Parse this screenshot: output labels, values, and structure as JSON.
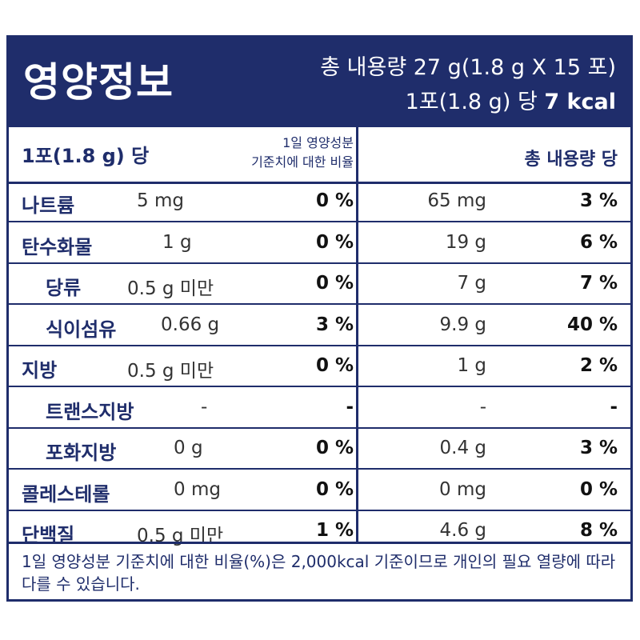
{
  "header": {
    "title": "영양정보",
    "total": "총 내용량 27 g(1.8 g X 15 포)",
    "per_serving_prefix": "1포(1.8 g) 당 ",
    "kcal": "7 kcal"
  },
  "subheader": {
    "per_serving": "1포(1.8 g) 당",
    "reference_line1": "1일 영양성분",
    "reference_line2": "기준치에 대한 비율",
    "per_total": "총 내용량 당"
  },
  "rows": [
    {
      "name": "나트륨",
      "amount": "5 mg",
      "percent": "0 %",
      "total_amount": "65 mg",
      "total_percent": "3 %"
    },
    {
      "name": "탄수화물",
      "amount": "1 g",
      "percent": "0 %",
      "total_amount": "19 g",
      "total_percent": "6 %"
    },
    {
      "name": "당류",
      "amount": "0.5 g 미만",
      "percent": "0 %",
      "total_amount": "7 g",
      "total_percent": "7 %"
    },
    {
      "name": "식이섬유",
      "amount": "0.66 g",
      "percent": "3 %",
      "total_amount": "9.9 g",
      "total_percent": "40 %"
    },
    {
      "name": "지방",
      "amount": "0.5 g 미만",
      "percent": "0 %",
      "total_amount": "1 g",
      "total_percent": "2 %"
    },
    {
      "name": "트랜스지방",
      "amount": "-",
      "percent": "-",
      "total_amount": "-",
      "total_percent": "-"
    },
    {
      "name": "포화지방",
      "amount": "0 g",
      "percent": "0 %",
      "total_amount": "0.4 g",
      "total_percent": "3 %"
    },
    {
      "name": "콜레스테롤",
      "amount": "0 mg",
      "percent": "0 %",
      "total_amount": "0 mg",
      "total_percent": "0 %"
    },
    {
      "name": "단백질",
      "amount": "0.5 g 미만",
      "percent": "1 %",
      "total_amount": "4.6 g",
      "total_percent": "8 %"
    }
  ],
  "footer": {
    "note": "1일 영양성분 기준치에 대한 비율(%)은 2,000kcal 기준이므로 개인의 필요 열량에 따라 다를 수 있습니다."
  }
}
